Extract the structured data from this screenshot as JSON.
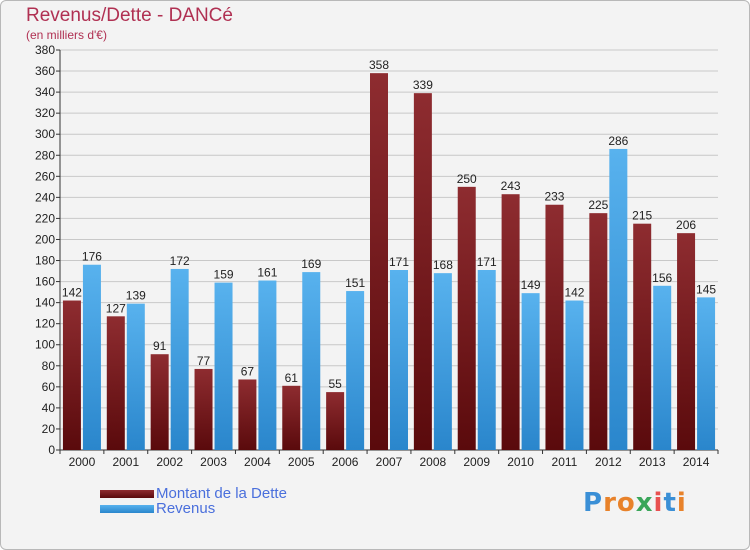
{
  "header": {
    "title": "Revenus/Dette - DANCé",
    "subtitle": "(en milliers d'€)"
  },
  "logo": {
    "letters": [
      "P",
      "r",
      "o",
      "x",
      "i",
      "t",
      "i"
    ],
    "colors": [
      "#3a8fd6",
      "#e8822a",
      "#e8822a",
      "#3aa65a",
      "#e85050",
      "#3a8fd6",
      "#e8822a"
    ]
  },
  "colors": {
    "dette": "#7a1c1e",
    "revenus": "#3f9fe0",
    "grid": "#c8c8c8",
    "axis": "#333333",
    "text": "#222222"
  },
  "chart_data": {
    "type": "bar",
    "categories": [
      "2000",
      "2001",
      "2002",
      "2003",
      "2004",
      "2005",
      "2006",
      "2007",
      "2008",
      "2009",
      "2010",
      "2011",
      "2012",
      "2013",
      "2014"
    ],
    "series": [
      {
        "name": "Montant de la Dette",
        "values": [
          142,
          127,
          91,
          77,
          67,
          61,
          55,
          358,
          339,
          250,
          243,
          233,
          225,
          215,
          206
        ]
      },
      {
        "name": "Revenus",
        "values": [
          176,
          139,
          172,
          159,
          161,
          169,
          151,
          171,
          168,
          171,
          149,
          142,
          286,
          156,
          145
        ]
      }
    ],
    "ylim": [
      0,
      380
    ],
    "ytick_step": 20,
    "grid": true,
    "legend_position": "bottom-left"
  }
}
